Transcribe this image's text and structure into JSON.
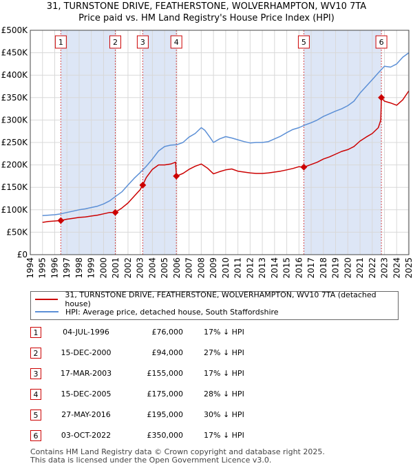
{
  "title_line1": "31, TURNSTONE DRIVE, FEATHERSTONE, WOLVERHAMPTON, WV10 7TA",
  "title_line2": "Price paid vs. HM Land Registry's House Price Index (HPI)",
  "colors": {
    "property": "#cc0000",
    "hpi": "#5b8fd6",
    "shade": "#dde6f6",
    "sale_line": "#cc0000"
  },
  "legend": {
    "property_label": "31, TURNSTONE DRIVE, FEATHERSTONE, WOLVERHAMPTON, WV10 7TA (detached house)",
    "hpi_label": "HPI: Average price, detached house, South Staffordshire"
  },
  "transactions": [
    {
      "num": "1",
      "date": "04-JUL-1996",
      "price": "£76,000",
      "hpi": "17% ↓ HPI"
    },
    {
      "num": "2",
      "date": "15-DEC-2000",
      "price": "£94,000",
      "hpi": "27% ↓ HPI"
    },
    {
      "num": "3",
      "date": "17-MAR-2003",
      "price": "£155,000",
      "hpi": "17% ↓ HPI"
    },
    {
      "num": "4",
      "date": "15-DEC-2005",
      "price": "£175,000",
      "hpi": "28% ↓ HPI"
    },
    {
      "num": "5",
      "date": "27-MAY-2016",
      "price": "£195,000",
      "hpi": "30% ↓ HPI"
    },
    {
      "num": "6",
      "date": "03-OCT-2022",
      "price": "£350,000",
      "hpi": "17% ↓ HPI"
    }
  ],
  "footer": {
    "line1": "Contains HM Land Registry data © Crown copyright and database right 2025.",
    "line2": "This data is licensed under the Open Government Licence v3.0."
  },
  "chart_data": {
    "type": "line",
    "title": "31, TURNSTONE DRIVE, FEATHERSTONE, WOLVERHAMPTON, WV10 7TA",
    "subtitle": "Price paid vs. HM Land Registry's House Price Index (HPI)",
    "xlim": [
      1994,
      2025
    ],
    "ylim": [
      0,
      500000
    ],
    "x_ticks": [
      "1994",
      "1995",
      "1996",
      "1997",
      "1998",
      "1999",
      "2000",
      "2001",
      "2002",
      "2003",
      "2004",
      "2005",
      "2006",
      "2007",
      "2008",
      "2009",
      "2010",
      "2011",
      "2012",
      "2013",
      "2014",
      "2015",
      "2016",
      "2017",
      "2018",
      "2019",
      "2020",
      "2021",
      "2022",
      "2023",
      "2024",
      "2025"
    ],
    "y_ticks": [
      {
        "value": 0,
        "label": "£0"
      },
      {
        "value": 50000,
        "label": "£50K"
      },
      {
        "value": 100000,
        "label": "£100K"
      },
      {
        "value": 150000,
        "label": "£150K"
      },
      {
        "value": 200000,
        "label": "£200K"
      },
      {
        "value": 250000,
        "label": "£250K"
      },
      {
        "value": 300000,
        "label": "£300K"
      },
      {
        "value": 350000,
        "label": "£350K"
      },
      {
        "value": 400000,
        "label": "£400K"
      },
      {
        "value": 450000,
        "label": "£450K"
      },
      {
        "value": 500000,
        "label": "£500K"
      }
    ],
    "grid": true,
    "legend_position": "below",
    "sales": [
      {
        "label": "1",
        "x": 1996.5,
        "y": 76000
      },
      {
        "label": "2",
        "x": 2000.96,
        "y": 94000
      },
      {
        "label": "3",
        "x": 2003.21,
        "y": 155000
      },
      {
        "label": "4",
        "x": 2005.96,
        "y": 175000
      },
      {
        "label": "5",
        "x": 2016.4,
        "y": 195000
      },
      {
        "label": "6",
        "x": 2022.75,
        "y": 350000
      }
    ],
    "series": [
      {
        "name": "31, TURNSTONE DRIVE, FEATHERSTONE, WOLVERHAMPTON, WV10 7TA (detached house)",
        "color": "#cc0000",
        "points": [
          [
            1995.0,
            72000
          ],
          [
            1995.5,
            74000
          ],
          [
            1996.0,
            75000
          ],
          [
            1996.5,
            76000
          ],
          [
            1997.0,
            79000
          ],
          [
            1997.5,
            81000
          ],
          [
            1998.0,
            83000
          ],
          [
            1998.5,
            84000
          ],
          [
            1999.0,
            86000
          ],
          [
            1999.5,
            88000
          ],
          [
            2000.0,
            91000
          ],
          [
            2000.5,
            94000
          ],
          [
            2000.96,
            94000
          ],
          [
            2001.0,
            95000
          ],
          [
            2001.5,
            104000
          ],
          [
            2002.0,
            115000
          ],
          [
            2002.5,
            130000
          ],
          [
            2003.0,
            145000
          ],
          [
            2003.21,
            155000
          ],
          [
            2003.5,
            172000
          ],
          [
            2004.0,
            190000
          ],
          [
            2004.5,
            200000
          ],
          [
            2005.0,
            200000
          ],
          [
            2005.5,
            202000
          ],
          [
            2005.9,
            206000
          ],
          [
            2005.96,
            175000
          ],
          [
            2006.5,
            181000
          ],
          [
            2007.0,
            190000
          ],
          [
            2007.5,
            197000
          ],
          [
            2008.0,
            202000
          ],
          [
            2008.5,
            193000
          ],
          [
            2009.0,
            180000
          ],
          [
            2009.5,
            185000
          ],
          [
            2010.0,
            189000
          ],
          [
            2010.5,
            191000
          ],
          [
            2011.0,
            186000
          ],
          [
            2011.5,
            184000
          ],
          [
            2012.0,
            182000
          ],
          [
            2012.5,
            181000
          ],
          [
            2013.0,
            181000
          ],
          [
            2013.5,
            182000
          ],
          [
            2014.0,
            184000
          ],
          [
            2014.5,
            186000
          ],
          [
            2015.0,
            189000
          ],
          [
            2015.5,
            192000
          ],
          [
            2016.0,
            196000
          ],
          [
            2016.4,
            195000
          ],
          [
            2016.8,
            199000
          ],
          [
            2017.5,
            206000
          ],
          [
            2018.0,
            213000
          ],
          [
            2018.5,
            218000
          ],
          [
            2019.0,
            224000
          ],
          [
            2019.5,
            230000
          ],
          [
            2020.0,
            234000
          ],
          [
            2020.5,
            241000
          ],
          [
            2021.0,
            253000
          ],
          [
            2021.5,
            262000
          ],
          [
            2022.0,
            270000
          ],
          [
            2022.5,
            283000
          ],
          [
            2022.7,
            300000
          ],
          [
            2022.75,
            350000
          ],
          [
            2023.0,
            342000
          ],
          [
            2023.5,
            338000
          ],
          [
            2024.0,
            333000
          ],
          [
            2024.5,
            345000
          ],
          [
            2025.0,
            365000
          ]
        ]
      },
      {
        "name": "HPI: Average price, detached house, South Staffordshire",
        "color": "#5b8fd6",
        "points": [
          [
            1995.0,
            87000
          ],
          [
            1995.5,
            88000
          ],
          [
            1996.0,
            89000
          ],
          [
            1996.5,
            91000
          ],
          [
            1997.0,
            94000
          ],
          [
            1997.5,
            97000
          ],
          [
            1998.0,
            100000
          ],
          [
            1998.5,
            102000
          ],
          [
            1999.0,
            105000
          ],
          [
            1999.5,
            108000
          ],
          [
            2000.0,
            113000
          ],
          [
            2000.5,
            120000
          ],
          [
            2001.0,
            130000
          ],
          [
            2001.5,
            140000
          ],
          [
            2002.0,
            155000
          ],
          [
            2002.5,
            170000
          ],
          [
            2003.0,
            183000
          ],
          [
            2003.5,
            197000
          ],
          [
            2004.0,
            213000
          ],
          [
            2004.5,
            231000
          ],
          [
            2005.0,
            241000
          ],
          [
            2005.5,
            244000
          ],
          [
            2006.0,
            245000
          ],
          [
            2006.5,
            250000
          ],
          [
            2007.0,
            262000
          ],
          [
            2007.5,
            270000
          ],
          [
            2008.0,
            283000
          ],
          [
            2008.3,
            277000
          ],
          [
            2008.7,
            262000
          ],
          [
            2009.0,
            250000
          ],
          [
            2009.5,
            258000
          ],
          [
            2010.0,
            263000
          ],
          [
            2010.5,
            260000
          ],
          [
            2011.0,
            256000
          ],
          [
            2011.5,
            252000
          ],
          [
            2012.0,
            249000
          ],
          [
            2012.5,
            250000
          ],
          [
            2013.0,
            250000
          ],
          [
            2013.5,
            252000
          ],
          [
            2014.0,
            258000
          ],
          [
            2014.5,
            264000
          ],
          [
            2015.0,
            272000
          ],
          [
            2015.5,
            279000
          ],
          [
            2016.0,
            283000
          ],
          [
            2016.5,
            289000
          ],
          [
            2017.0,
            294000
          ],
          [
            2017.5,
            300000
          ],
          [
            2018.0,
            308000
          ],
          [
            2018.5,
            314000
          ],
          [
            2019.0,
            320000
          ],
          [
            2019.5,
            325000
          ],
          [
            2020.0,
            332000
          ],
          [
            2020.5,
            342000
          ],
          [
            2021.0,
            360000
          ],
          [
            2021.5,
            375000
          ],
          [
            2022.0,
            390000
          ],
          [
            2022.5,
            405000
          ],
          [
            2023.0,
            420000
          ],
          [
            2023.5,
            418000
          ],
          [
            2024.0,
            425000
          ],
          [
            2024.5,
            440000
          ],
          [
            2025.0,
            450000
          ]
        ]
      }
    ]
  }
}
